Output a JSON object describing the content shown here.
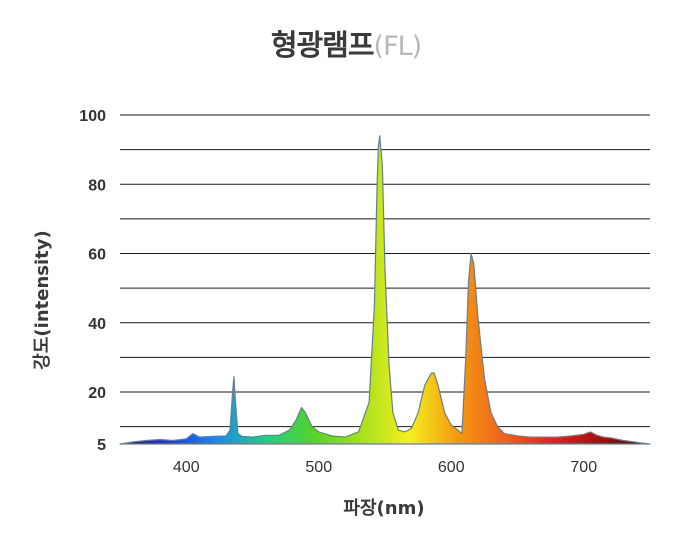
{
  "chart_data": {
    "type": "area",
    "title": "형광램프",
    "subtitle": "(FL)",
    "xlabel": "파장(nm)",
    "ylabel": "강도(intensity)",
    "xlim": [
      350,
      750
    ],
    "ylim": [
      5,
      100
    ],
    "x_ticks": [
      400,
      500,
      600,
      700
    ],
    "y_ticks": [
      5,
      20,
      40,
      60,
      80,
      100
    ],
    "grid": true,
    "gradient_colors": [
      "#1a1a70",
      "#1f3cd8",
      "#1e88e8",
      "#22cc88",
      "#55d22c",
      "#a6e01c",
      "#f5f020",
      "#f39a10",
      "#f06020",
      "#e02020",
      "#a01010",
      "#3a0808"
    ],
    "series": [
      {
        "x": [
          350,
          360,
          370,
          380,
          390,
          400,
          405,
          410,
          420,
          430,
          433,
          435,
          436,
          437,
          439,
          442,
          450,
          460,
          470,
          478,
          483,
          487,
          490,
          495,
          500,
          510,
          520,
          530,
          538,
          542,
          544,
          545,
          546,
          548,
          550,
          553,
          556,
          560,
          565,
          570,
          575,
          580,
          585,
          587,
          590,
          595,
          600,
          605,
          608,
          611,
          613,
          615,
          617,
          620,
          625,
          630,
          635,
          640,
          650,
          660,
          670,
          680,
          690,
          700,
          705,
          710,
          715,
          720,
          730,
          740,
          750
        ],
        "y": [
          5,
          5.6,
          6,
          6.3,
          6,
          6.5,
          8,
          7,
          7.2,
          7.3,
          9,
          20,
          24.5,
          18,
          8,
          7.2,
          7,
          7.5,
          7.5,
          9,
          12,
          15.5,
          14,
          10,
          8.5,
          7.3,
          7,
          8.5,
          17,
          45,
          80,
          91,
          94,
          85,
          55,
          28,
          14,
          9,
          8.5,
          9.5,
          14,
          22,
          25.5,
          25.5,
          22,
          14,
          10.5,
          9,
          8,
          30,
          52,
          60,
          57,
          42,
          24,
          14,
          10,
          8,
          7.3,
          7,
          7,
          7,
          7.3,
          7.8,
          8.5,
          7.5,
          7,
          6.8,
          6,
          5.5,
          5
        ]
      }
    ]
  }
}
